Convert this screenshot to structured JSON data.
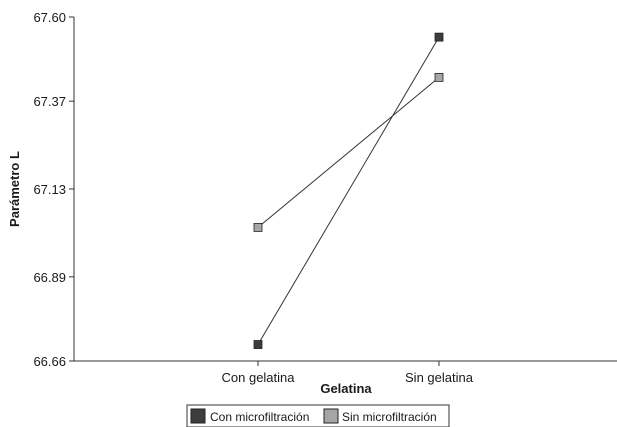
{
  "chart_data": {
    "type": "line",
    "xlabel": "Gelatina",
    "ylabel": "Parámetro L",
    "categories": [
      "Con gelatina",
      "Sin gelatina"
    ],
    "ylim": [
      66.66,
      67.6
    ],
    "yticks": [
      "66.66",
      "66.89",
      "67.13",
      "67.37",
      "67.60"
    ],
    "grid": false,
    "legend_position": "bottom",
    "series": [
      {
        "name": "Con microfiltración",
        "values": [
          66.705,
          67.545
        ],
        "color": "#3d3d3d"
      },
      {
        "name": "Sin microfiltración",
        "values": [
          67.025,
          67.435
        ],
        "color": "#a6a6a6"
      }
    ]
  }
}
